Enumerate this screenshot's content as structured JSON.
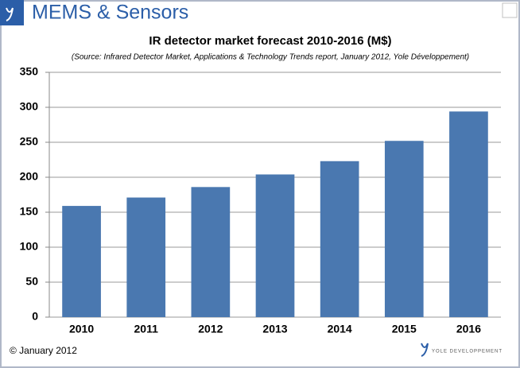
{
  "header": {
    "title": "MEMS & Sensors"
  },
  "footer": {
    "copyright": "© January 2012",
    "logo": "YOLE DEVELOPPEMENT"
  },
  "chart_data": {
    "type": "bar",
    "title": "IR detector market forecast 2010-2016 (M$)",
    "subtitle": "(Source: Infrared Detector Market, Applications & Technology Trends report, January 2012, Yole Développement)",
    "categories": [
      "2010",
      "2011",
      "2012",
      "2013",
      "2014",
      "2015",
      "2016"
    ],
    "values": [
      159,
      171,
      186,
      204,
      223,
      252,
      294
    ],
    "color": "#4a78b0",
    "ylim": [
      0,
      350
    ],
    "yticks": [
      0,
      50,
      100,
      150,
      200,
      250,
      300,
      350
    ],
    "grid": true
  }
}
